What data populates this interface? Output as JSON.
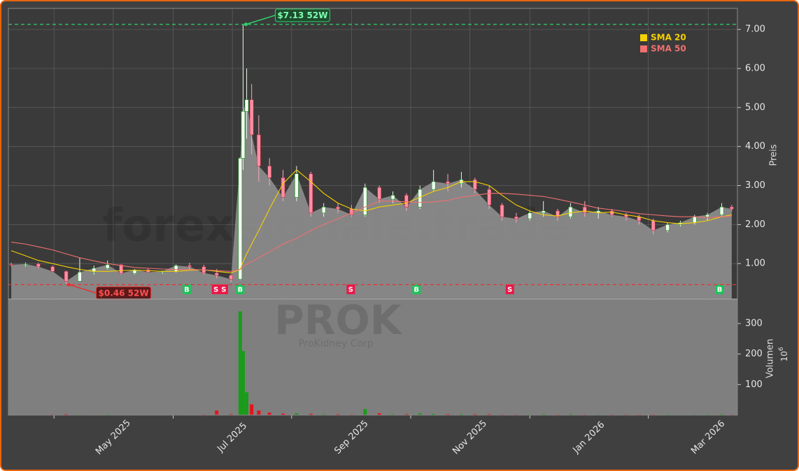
{
  "chart_data": {
    "type": "candlestick",
    "watermark": "forexsignale.trade",
    "symbol": "PROK",
    "company": "ProKidney Corp",
    "x": [
      2025.19,
      2025.21,
      2025.228,
      2025.248,
      2025.267,
      2025.286,
      2025.306,
      2025.325,
      2025.344,
      2025.363,
      2025.382,
      2025.402,
      2025.421,
      2025.44,
      2025.46,
      2025.478,
      2025.498,
      2025.511,
      2025.515,
      2025.52,
      2025.527,
      2025.537,
      2025.552,
      2025.571,
      2025.59,
      2025.61,
      2025.628,
      2025.648,
      2025.667,
      2025.686,
      2025.706,
      2025.725,
      2025.744,
      2025.763,
      2025.782,
      2025.802,
      2025.821,
      2025.84,
      2025.86,
      2025.878,
      2025.898,
      2025.917,
      2025.936,
      2025.956,
      2025.974,
      2025.994,
      2026.013,
      2026.032,
      2026.052,
      2026.07,
      2026.09,
      2026.11,
      2026.128,
      2026.148,
      2026.166,
      2026.186,
      2026.2
    ],
    "open": [
      0.98,
      0.97,
      0.99,
      0.92,
      0.8,
      0.55,
      0.78,
      0.88,
      0.97,
      0.75,
      0.84,
      0.78,
      0.8,
      0.95,
      0.92,
      0.76,
      0.7,
      0.6,
      3.7,
      4.9,
      5.2,
      4.3,
      3.5,
      3.2,
      2.7,
      3.3,
      2.3,
      2.45,
      2.4,
      2.25,
      2.95,
      2.65,
      2.75,
      2.45,
      2.9,
      3.1,
      3.05,
      3.15,
      2.9,
      2.5,
      2.2,
      2.15,
      2.3,
      2.35,
      2.2,
      2.45,
      2.3,
      2.35,
      2.25,
      2.2,
      2.1,
      1.85,
      2.0,
      2.05,
      2.2,
      2.25,
      2.45
    ],
    "high": [
      1.02,
      1.03,
      1.02,
      0.95,
      0.82,
      1.15,
      0.95,
      1.08,
      0.99,
      0.86,
      0.87,
      0.82,
      0.98,
      1.02,
      0.97,
      0.86,
      0.72,
      3.72,
      7.13,
      6.0,
      5.6,
      4.8,
      3.7,
      3.4,
      3.5,
      3.35,
      2.55,
      2.55,
      2.5,
      3.05,
      3.0,
      2.85,
      2.8,
      3.0,
      3.4,
      3.3,
      3.35,
      3.2,
      3.0,
      2.55,
      2.3,
      2.35,
      2.6,
      2.4,
      2.55,
      2.6,
      2.45,
      2.4,
      2.3,
      2.25,
      2.15,
      2.05,
      2.1,
      2.25,
      2.3,
      2.55,
      2.5
    ],
    "low": [
      0.93,
      0.92,
      0.88,
      0.78,
      0.46,
      0.54,
      0.72,
      0.85,
      0.72,
      0.72,
      0.76,
      0.74,
      0.77,
      0.86,
      0.72,
      0.62,
      0.52,
      0.58,
      3.4,
      4.2,
      3.8,
      3.1,
      3.0,
      2.6,
      2.6,
      2.2,
      2.2,
      2.3,
      2.2,
      2.2,
      2.55,
      2.55,
      2.35,
      2.4,
      2.85,
      2.85,
      2.95,
      2.8,
      2.4,
      2.1,
      2.05,
      2.1,
      2.2,
      2.1,
      2.15,
      2.2,
      2.15,
      2.2,
      2.1,
      2.0,
      1.75,
      1.8,
      1.95,
      2.0,
      2.1,
      2.2,
      2.35
    ],
    "close": [
      0.97,
      0.99,
      0.92,
      0.8,
      0.55,
      0.78,
      0.88,
      0.97,
      0.75,
      0.84,
      0.78,
      0.8,
      0.95,
      0.92,
      0.76,
      0.7,
      0.6,
      3.7,
      4.9,
      5.2,
      4.3,
      3.5,
      3.2,
      2.7,
      3.3,
      2.3,
      2.45,
      2.4,
      2.25,
      2.95,
      2.65,
      2.75,
      2.45,
      2.9,
      3.1,
      3.05,
      3.15,
      2.9,
      2.5,
      2.2,
      2.15,
      2.3,
      2.35,
      2.2,
      2.45,
      2.3,
      2.35,
      2.25,
      2.2,
      2.1,
      1.85,
      2.0,
      2.05,
      2.2,
      2.25,
      2.45,
      2.4
    ],
    "volume": [
      1,
      1,
      1,
      2,
      3,
      2,
      1,
      2,
      1,
      1,
      1,
      1,
      2,
      1,
      2,
      15,
      3,
      340,
      210,
      75,
      35,
      15,
      8,
      5,
      6,
      4,
      3,
      3,
      2,
      20,
      6,
      3,
      3,
      6,
      4,
      3,
      3,
      3,
      3,
      2,
      2,
      2,
      3,
      2,
      3,
      2,
      2,
      2,
      2,
      2,
      2,
      2,
      2,
      2,
      2,
      3,
      2
    ],
    "up_color": "#1a9c1a",
    "down_color": "#e8121a",
    "area_color": "#8a8a8a",
    "series": [
      {
        "name": "SMA 20",
        "color": "#f5d000",
        "values": [
          1.33,
          1.2,
          1.08,
          1.0,
          0.92,
          0.85,
          0.8,
          0.8,
          0.82,
          0.83,
          0.82,
          0.8,
          0.8,
          0.83,
          0.84,
          0.8,
          0.76,
          0.85,
          1.05,
          1.25,
          1.5,
          1.85,
          2.4,
          3.05,
          3.4,
          3.1,
          2.8,
          2.55,
          2.4,
          2.35,
          2.45,
          2.5,
          2.55,
          2.7,
          2.85,
          2.95,
          3.1,
          3.1,
          3.0,
          2.75,
          2.5,
          2.35,
          2.25,
          2.22,
          2.3,
          2.35,
          2.3,
          2.32,
          2.25,
          2.2,
          2.1,
          2.05,
          2.02,
          2.05,
          2.1,
          2.2,
          2.25
        ]
      },
      {
        "name": "SMA 50",
        "color": "#f07070",
        "values": [
          1.55,
          1.5,
          1.43,
          1.35,
          1.25,
          1.15,
          1.07,
          1.0,
          0.95,
          0.9,
          0.88,
          0.86,
          0.85,
          0.85,
          0.84,
          0.82,
          0.8,
          0.85,
          0.92,
          0.98,
          1.05,
          1.15,
          1.3,
          1.5,
          1.65,
          1.85,
          2.0,
          2.15,
          2.3,
          2.45,
          2.6,
          2.6,
          2.58,
          2.57,
          2.58,
          2.62,
          2.7,
          2.75,
          2.8,
          2.8,
          2.78,
          2.75,
          2.72,
          2.65,
          2.58,
          2.5,
          2.42,
          2.38,
          2.33,
          2.28,
          2.25,
          2.22,
          2.2,
          2.2,
          2.18,
          2.2,
          2.22
        ]
      }
    ],
    "legend": "upper right",
    "grid": true,
    "xlim": [
      2025.186,
      2026.208
    ],
    "xticks": [
      {
        "value": 2025.333,
        "label": "May 2025"
      },
      {
        "value": 2025.5,
        "label": "Jul 2025"
      },
      {
        "value": 2025.667,
        "label": "Sep 2025"
      },
      {
        "value": 2025.833,
        "label": "Nov 2025"
      },
      {
        "value": 2026.0,
        "label": "Jan 2026"
      },
      {
        "value": 2026.167,
        "label": "Mar 2026"
      }
    ],
    "xminorticks": [
      2025.25,
      2025.417,
      2025.583,
      2025.75,
      2025.917,
      2026.083
    ],
    "ylim": [
      0.09,
      7.54
    ],
    "yticks": [
      {
        "value": 1,
        "label": "1.00"
      },
      {
        "value": 2,
        "label": "2.00"
      },
      {
        "value": 3,
        "label": "3.00"
      },
      {
        "value": 4,
        "label": "4.00"
      },
      {
        "value": 5,
        "label": "5.00"
      },
      {
        "value": 6,
        "label": "6.00"
      },
      {
        "value": 7,
        "label": "7.00"
      }
    ],
    "ylabel": "Preis",
    "volume_ylim": [
      0,
      380
    ],
    "volume_yticks": [
      100,
      200,
      300
    ],
    "volume_ylabel": "Volumen",
    "volume_scale": {
      "base": "10",
      "exponent": "6"
    },
    "signals": {
      "x": [
        2025.436,
        2025.477,
        2025.488,
        2025.511,
        2025.666,
        2025.758,
        2025.889,
        2026.183
      ],
      "labels": [
        "B",
        "S",
        "S",
        "B",
        "S",
        "B",
        "S",
        "B"
      ],
      "buy_color": "#1fc25a",
      "sell_color": "#e8194a"
    },
    "annotations": [
      {
        "text": "$7.13 52W",
        "value": 7.13,
        "x": 2025.515,
        "color": "#2fd06a"
      },
      {
        "text": "$0.46 52W",
        "value": 0.46,
        "x": 2025.267,
        "color": "#e83030"
      }
    ]
  }
}
